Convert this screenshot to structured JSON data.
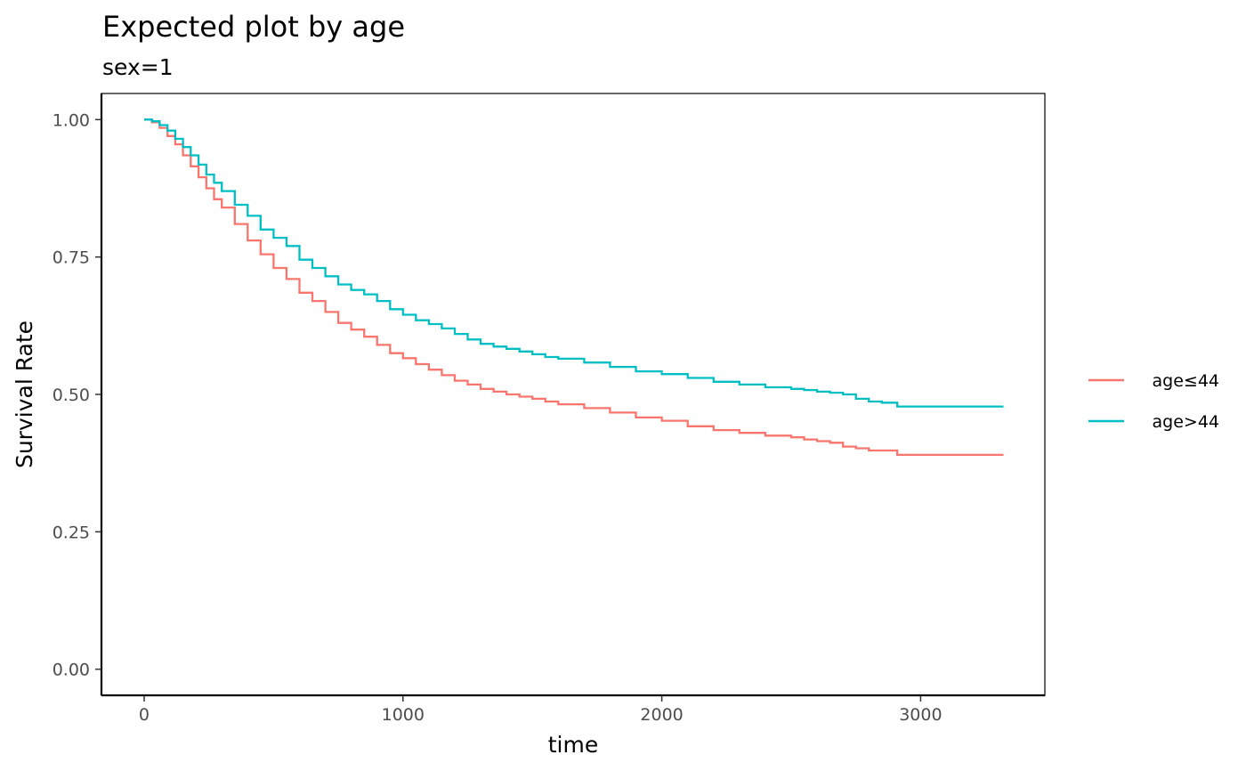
{
  "chart_data": {
    "type": "line",
    "title": "Expected plot by age",
    "subtitle": "sex=1",
    "xlabel": "time",
    "ylabel": "Survival Rate",
    "xlim": [
      -165,
      3480
    ],
    "ylim": [
      -0.0475,
      1.0475
    ],
    "x_ticks": [
      0,
      1000,
      2000,
      3000
    ],
    "x_tick_labels": [
      "0",
      "1000",
      "2000",
      "3000"
    ],
    "y_ticks": [
      0,
      0.25,
      0.5,
      0.75,
      1
    ],
    "y_tick_labels": [
      "0.00",
      "0.25",
      "0.50",
      "0.75",
      "1.00"
    ],
    "grid": false,
    "legend_position": "right",
    "series": [
      {
        "name": "age≤44",
        "color": "#F8766D",
        "x": [
          0,
          30,
          60,
          90,
          120,
          150,
          180,
          210,
          240,
          270,
          300,
          350,
          400,
          450,
          500,
          550,
          600,
          650,
          700,
          750,
          800,
          850,
          900,
          950,
          1000,
          1050,
          1100,
          1150,
          1200,
          1250,
          1300,
          1350,
          1400,
          1450,
          1500,
          1550,
          1600,
          1700,
          1800,
          1900,
          2000,
          2100,
          2200,
          2300,
          2400,
          2500,
          2550,
          2600,
          2650,
          2700,
          2750,
          2800,
          2850,
          2900,
          2910,
          3000,
          3100,
          3200,
          3320
        ],
        "y": [
          1.0,
          0.995,
          0.985,
          0.97,
          0.955,
          0.935,
          0.915,
          0.895,
          0.875,
          0.855,
          0.84,
          0.81,
          0.78,
          0.755,
          0.73,
          0.71,
          0.685,
          0.67,
          0.65,
          0.63,
          0.618,
          0.605,
          0.59,
          0.575,
          0.566,
          0.555,
          0.545,
          0.535,
          0.525,
          0.518,
          0.51,
          0.505,
          0.5,
          0.496,
          0.492,
          0.487,
          0.482,
          0.475,
          0.467,
          0.458,
          0.452,
          0.442,
          0.435,
          0.43,
          0.425,
          0.422,
          0.418,
          0.415,
          0.412,
          0.405,
          0.402,
          0.398,
          0.398,
          0.398,
          0.39,
          0.39,
          0.39,
          0.39,
          0.39
        ]
      },
      {
        "name": "age>44",
        "color": "#00BFC4",
        "x": [
          0,
          30,
          60,
          90,
          120,
          150,
          180,
          210,
          240,
          270,
          300,
          350,
          400,
          450,
          500,
          550,
          600,
          650,
          700,
          750,
          800,
          850,
          900,
          950,
          1000,
          1050,
          1100,
          1150,
          1200,
          1250,
          1300,
          1350,
          1400,
          1450,
          1500,
          1550,
          1600,
          1700,
          1800,
          1900,
          2000,
          2100,
          2200,
          2300,
          2400,
          2500,
          2550,
          2600,
          2650,
          2700,
          2750,
          2800,
          2850,
          2900,
          2910,
          3000,
          3100,
          3200,
          3320
        ],
        "y": [
          1.0,
          0.997,
          0.99,
          0.98,
          0.965,
          0.95,
          0.935,
          0.918,
          0.9,
          0.885,
          0.87,
          0.845,
          0.825,
          0.8,
          0.785,
          0.77,
          0.745,
          0.73,
          0.715,
          0.7,
          0.69,
          0.682,
          0.67,
          0.655,
          0.645,
          0.635,
          0.628,
          0.62,
          0.61,
          0.6,
          0.592,
          0.587,
          0.583,
          0.578,
          0.573,
          0.568,
          0.565,
          0.558,
          0.55,
          0.542,
          0.537,
          0.53,
          0.523,
          0.518,
          0.513,
          0.51,
          0.508,
          0.505,
          0.503,
          0.5,
          0.492,
          0.487,
          0.485,
          0.485,
          0.478,
          0.478,
          0.478,
          0.478,
          0.478
        ]
      }
    ]
  }
}
